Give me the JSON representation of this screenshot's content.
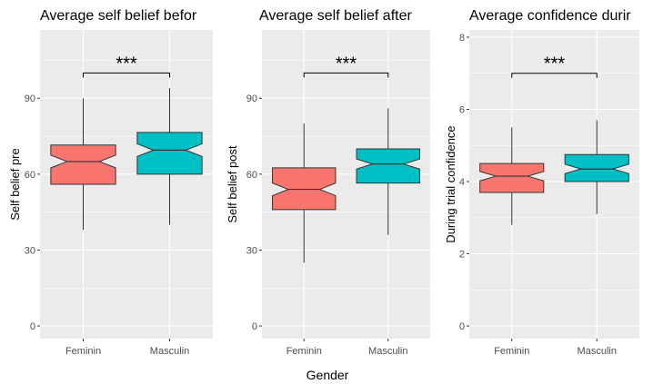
{
  "figure": {
    "xlabel": "Gender",
    "background": "#ebebeb",
    "gridline_color": "#ffffff",
    "group_colors": {
      "Feminin": "#f8766d",
      "Masculin": "#00bfc4"
    }
  },
  "chart_data": [
    {
      "type": "boxplot",
      "title": "Average self belief befor",
      "ylabel": "Self belief pre",
      "categories": [
        "Feminin",
        "Masculin"
      ],
      "ylim": [
        -5,
        117
      ],
      "yticks": [
        0,
        30,
        60,
        90
      ],
      "grid": true,
      "notched": true,
      "boxes": [
        {
          "name": "Feminin",
          "min": 38,
          "q1": 56,
          "median": 65,
          "q3": 71.5,
          "max": 90,
          "notch_low": 62.5,
          "notch_high": 67.5
        },
        {
          "name": "Masculin",
          "min": 40,
          "q1": 60,
          "median": 69.5,
          "q3": 76.5,
          "max": 94,
          "notch_low": 67,
          "notch_high": 72
        }
      ],
      "significance": {
        "label": "***",
        "y": 100
      }
    },
    {
      "type": "boxplot",
      "title": "Average self belief after",
      "ylabel": "Self belief post",
      "categories": [
        "Feminin",
        "Masculin"
      ],
      "ylim": [
        -5,
        117
      ],
      "yticks": [
        0,
        30,
        60,
        90
      ],
      "grid": true,
      "notched": true,
      "boxes": [
        {
          "name": "Feminin",
          "min": 25,
          "q1": 46,
          "median": 54,
          "q3": 62.5,
          "max": 80,
          "notch_low": 51.5,
          "notch_high": 56.5
        },
        {
          "name": "Masculin",
          "min": 36,
          "q1": 56.5,
          "median": 64,
          "q3": 70,
          "max": 86,
          "notch_low": 62,
          "notch_high": 66
        }
      ],
      "significance": {
        "label": "***",
        "y": 100
      }
    },
    {
      "type": "boxplot",
      "title": "Average confidence durir",
      "ylabel": "During trial confidence",
      "categories": [
        "Feminin",
        "Masculin"
      ],
      "ylim": [
        -0.35,
        8.2
      ],
      "yticks": [
        0,
        2,
        4,
        6,
        8
      ],
      "grid": true,
      "notched": true,
      "boxes": [
        {
          "name": "Feminin",
          "min": 2.8,
          "q1": 3.7,
          "median": 4.15,
          "q3": 4.5,
          "max": 5.5,
          "notch_low": 4.02,
          "notch_high": 4.28
        },
        {
          "name": "Masculin",
          "min": 3.1,
          "q1": 4.0,
          "median": 4.35,
          "q3": 4.75,
          "max": 5.7,
          "notch_low": 4.22,
          "notch_high": 4.48
        }
      ],
      "significance": {
        "label": "***",
        "y": 7.0
      }
    }
  ]
}
